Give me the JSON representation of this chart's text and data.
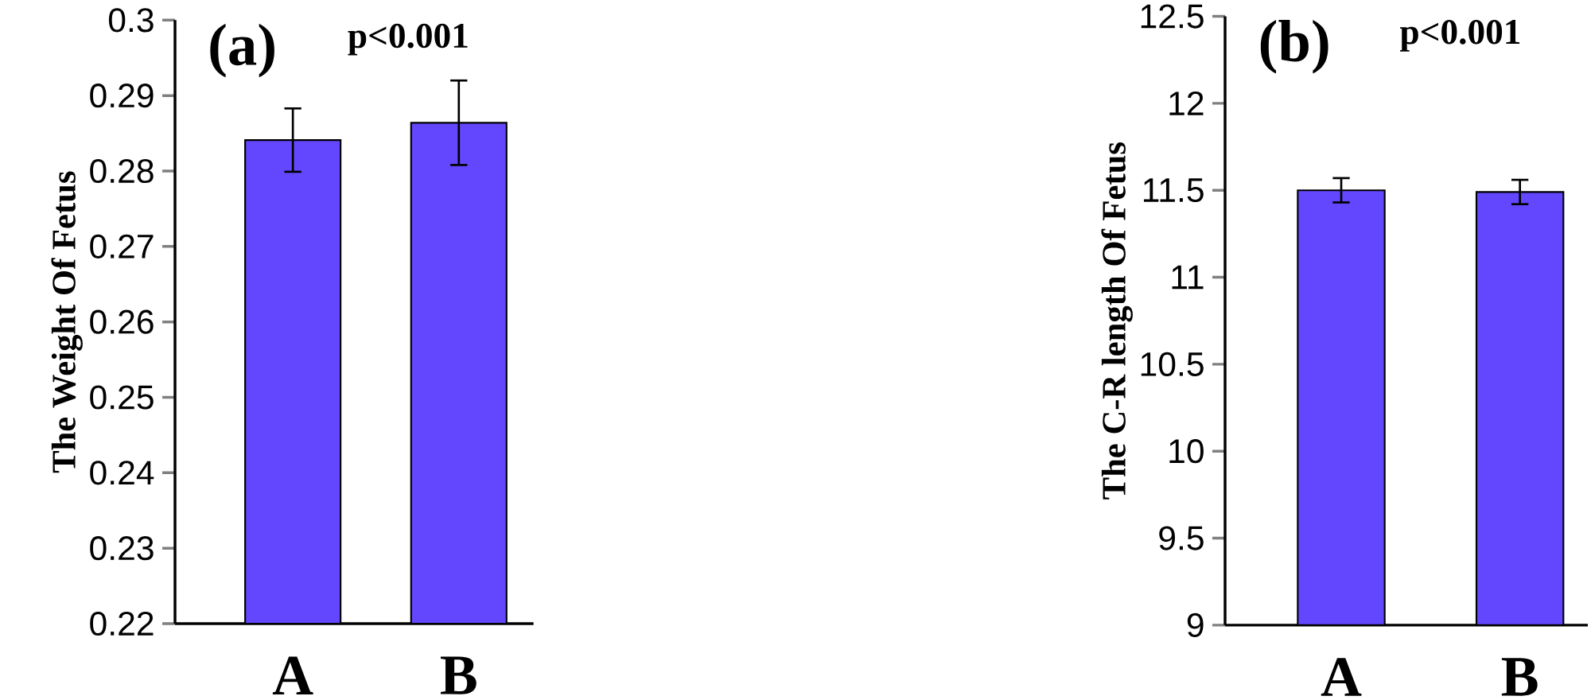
{
  "chart_data": [
    {
      "type": "bar",
      "categories": [
        "A",
        "B"
      ],
      "values": [
        0.2841,
        0.2864
      ],
      "errors": [
        0.0042,
        0.0056
      ],
      "color": "#6347ff",
      "ylabel": "The Weight Of Fetus",
      "ylim": [
        0.22,
        0.3
      ],
      "yticks": [
        0.22,
        0.23,
        0.24,
        0.25,
        0.26,
        0.27,
        0.28,
        0.29,
        0.3
      ],
      "annotations": [
        "(a)",
        "p<0.001"
      ]
    },
    {
      "type": "bar",
      "categories": [
        "A",
        "B"
      ],
      "values": [
        11.5,
        11.49
      ],
      "errors": [
        0.07,
        0.07
      ],
      "color": "#6347ff",
      "ylabel": "The C-R length Of Fetus",
      "ylim": [
        9,
        12.5
      ],
      "yticks": [
        9,
        9.5,
        10,
        10.5,
        11,
        11.5,
        12,
        12.5
      ],
      "annotations": [
        "(b)",
        "p<0.001"
      ]
    }
  ]
}
